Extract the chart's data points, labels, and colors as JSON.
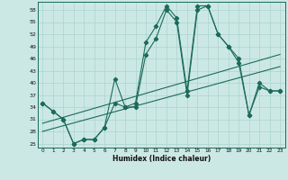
{
  "xlabel": "Humidex (Indice chaleur)",
  "bg_color": "#cce8e4",
  "line_color": "#1a6b5a",
  "grid_color": "#aad4cc",
  "xlim": [
    -0.5,
    23.5
  ],
  "ylim": [
    24,
    60
  ],
  "yticks": [
    25,
    28,
    31,
    34,
    37,
    40,
    43,
    46,
    49,
    52,
    55,
    58
  ],
  "xticks": [
    0,
    1,
    2,
    3,
    4,
    5,
    6,
    7,
    8,
    9,
    10,
    11,
    12,
    13,
    14,
    15,
    16,
    17,
    18,
    19,
    20,
    21,
    22,
    23
  ],
  "line1_x": [
    0,
    1,
    2,
    3,
    4,
    5,
    6,
    7,
    8,
    9,
    10,
    11,
    12,
    13,
    14,
    15,
    16,
    17,
    18,
    19,
    20,
    21,
    22,
    23
  ],
  "line1_y": [
    35,
    33,
    31,
    25,
    26,
    26,
    29,
    41,
    34,
    35,
    50,
    54,
    59,
    56,
    38,
    59,
    59,
    52,
    49,
    45,
    32,
    39,
    38,
    38
  ],
  "line2_x": [
    0,
    1,
    2,
    3,
    4,
    5,
    6,
    7,
    8,
    9,
    10,
    11,
    12,
    13,
    14,
    15,
    16,
    17,
    18,
    19,
    20,
    21,
    22,
    23
  ],
  "line2_y": [
    35,
    33,
    31,
    25,
    26,
    26,
    29,
    35,
    34,
    34,
    47,
    51,
    58,
    55,
    37,
    58,
    59,
    52,
    49,
    46,
    32,
    40,
    38,
    38
  ],
  "trend1_x": [
    0,
    23
  ],
  "trend1_y": [
    30,
    47
  ],
  "trend2_x": [
    0,
    23
  ],
  "trend2_y": [
    28,
    44
  ]
}
